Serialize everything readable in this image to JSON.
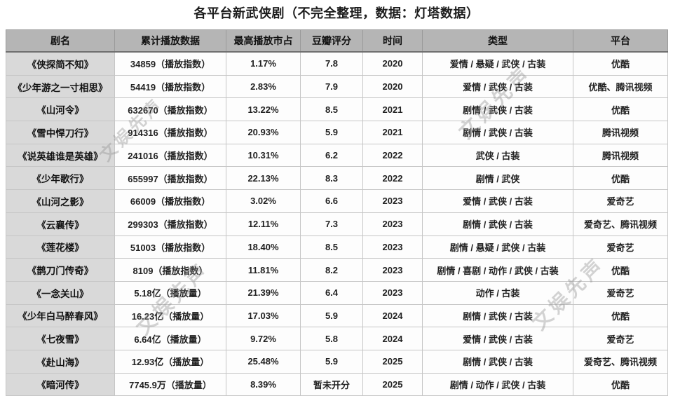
{
  "watermark_text": "文娱先声",
  "colors": {
    "header_bg": "#b5b5b5",
    "first_column_bg": "#d9d9d9",
    "cell_bg": "#fdfdfd",
    "border": "#c6c6c6",
    "watermark": "#8f8f8f",
    "text": "#1c1c1c"
  },
  "chart_data": {
    "type": "table",
    "title": "各平台新武侠剧（不完全整理，数据：灯塔数据）",
    "columns": [
      "剧名",
      "累计播放数据",
      "最高播放市占",
      "豆瓣评分",
      "时间",
      "类型",
      "平台"
    ],
    "rows": [
      [
        "《侠探简不知》",
        "34859（播放指数）",
        "1.17%",
        "7.8",
        "2020",
        "爱情 / 悬疑 / 武侠 / 古装",
        "优酷"
      ],
      [
        "《少年游之一寸相思》",
        "54419（播放指数）",
        "2.83%",
        "7.9",
        "2020",
        "爱情 / 武侠 / 古装",
        "优酷、腾讯视频"
      ],
      [
        "《山河令》",
        "632670（播放指数）",
        "13.22%",
        "8.5",
        "2021",
        "剧情 / 武侠 / 古装",
        "优酷"
      ],
      [
        "《雪中悍刀行》",
        "914316（播放指数）",
        "20.93%",
        "5.9",
        "2021",
        "剧情 / 武侠 / 古装",
        "腾讯视频"
      ],
      [
        "《说英雄谁是英雄》",
        "241016（播放指数）",
        "10.31%",
        "6.2",
        "2022",
        "武侠 / 古装",
        "腾讯视频"
      ],
      [
        "《少年歌行》",
        "655997（播放指数）",
        "22.13%",
        "8.3",
        "2022",
        "剧情 / 武侠",
        "优酷"
      ],
      [
        "《山河之影》",
        "66009（播放指数）",
        "3.02%",
        "6.6",
        "2023",
        "爱情 / 武侠 / 古装",
        "爱奇艺"
      ],
      [
        "《云襄传》",
        "299303（播放指数）",
        "12.11%",
        "7.3",
        "2023",
        "剧情 / 武侠 / 古装",
        "爱奇艺、腾讯视频"
      ],
      [
        "《莲花楼》",
        "51003（播放指数）",
        "18.40%",
        "8.5",
        "2023",
        "剧情 / 悬疑 / 武侠 / 古装",
        "爱奇艺"
      ],
      [
        "《鹊刀门传奇》",
        "8109（播放指数）",
        "11.81%",
        "8.2",
        "2023",
        "剧情 / 喜剧 / 动作 / 武侠 / 古装",
        "优酷"
      ],
      [
        "《一念关山》",
        "5.18亿（播放量）",
        "21.39%",
        "6.4",
        "2023",
        "动作 / 古装",
        "爱奇艺"
      ],
      [
        "《少年白马醉春风》",
        "16.23亿（播放量）",
        "17.03%",
        "5.9",
        "2024",
        "剧情 / 武侠 / 古装",
        "优酷"
      ],
      [
        "《七夜雪》",
        "6.64亿（播放量）",
        "9.72%",
        "5.8",
        "2024",
        "爱情 / 武侠 / 古装",
        "爱奇艺"
      ],
      [
        "《赴山海》",
        "12.93亿（播放量）",
        "25.48%",
        "5.9",
        "2025",
        "剧情 / 武侠 / 古装",
        "爱奇艺、腾讯视频"
      ],
      [
        "《暗河传》",
        "7745.9万（播放量）",
        "8.39%",
        "暂未开分",
        "2025",
        "剧情 / 动作 / 武侠 / 古装",
        "优酷"
      ]
    ]
  }
}
